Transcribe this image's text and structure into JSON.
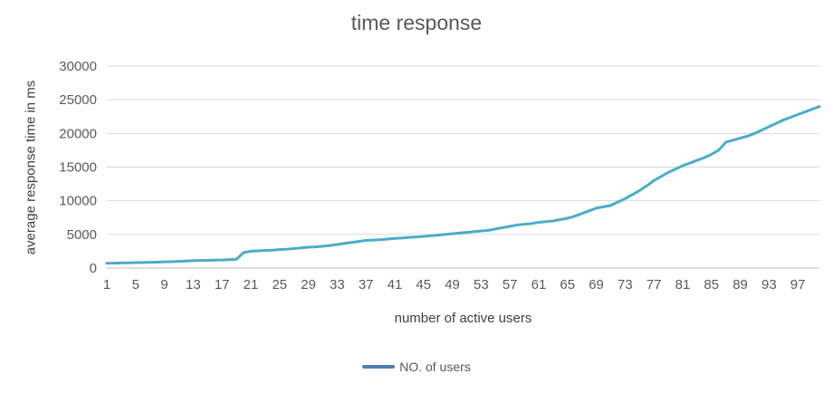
{
  "chart_data": {
    "type": "line",
    "title": "time response",
    "xlabel": "number of active users",
    "ylabel": "average response time in ms",
    "legend": [
      {
        "label": "NO. of users",
        "color": "#4f7db3"
      }
    ],
    "line_color": "#4bacc6",
    "grid_color": "#d9d9d9",
    "axis_color": "#bfbfbf",
    "tick_text_color": "#595959",
    "axis_title_color": "#404040",
    "title_color": "#595959",
    "grid": true,
    "legend_position": "bottom",
    "ylim": [
      0,
      30000
    ],
    "yticks": [
      0,
      5000,
      10000,
      15000,
      20000,
      25000,
      30000
    ],
    "xticks": [
      1,
      5,
      9,
      13,
      17,
      21,
      25,
      29,
      33,
      37,
      41,
      45,
      49,
      53,
      57,
      61,
      65,
      69,
      73,
      77,
      81,
      85,
      89,
      93,
      97
    ],
    "x": [
      1,
      2,
      3,
      4,
      5,
      6,
      7,
      8,
      9,
      10,
      11,
      12,
      13,
      14,
      15,
      16,
      17,
      18,
      19,
      20,
      21,
      22,
      23,
      24,
      25,
      26,
      27,
      28,
      29,
      30,
      31,
      32,
      33,
      34,
      35,
      36,
      37,
      38,
      39,
      40,
      41,
      42,
      43,
      44,
      45,
      46,
      47,
      48,
      49,
      50,
      51,
      52,
      53,
      54,
      55,
      56,
      57,
      58,
      59,
      60,
      61,
      62,
      63,
      64,
      65,
      66,
      67,
      68,
      69,
      70,
      71,
      72,
      73,
      74,
      75,
      76,
      77,
      78,
      79,
      80,
      81,
      82,
      83,
      84,
      85,
      86,
      87,
      88,
      89,
      90,
      91,
      92,
      93,
      94,
      95,
      96,
      97,
      98,
      99,
      100
    ],
    "values": [
      700,
      720,
      750,
      780,
      800,
      830,
      860,
      880,
      920,
      950,
      1000,
      1050,
      1100,
      1120,
      1150,
      1180,
      1200,
      1250,
      1300,
      2300,
      2500,
      2550,
      2600,
      2650,
      2750,
      2800,
      2900,
      3000,
      3100,
      3150,
      3250,
      3350,
      3500,
      3650,
      3800,
      3950,
      4100,
      4150,
      4200,
      4300,
      4400,
      4450,
      4550,
      4600,
      4700,
      4800,
      4900,
      5000,
      5100,
      5200,
      5300,
      5400,
      5500,
      5600,
      5800,
      6000,
      6200,
      6400,
      6500,
      6600,
      6800,
      6900,
      7000,
      7200,
      7400,
      7700,
      8100,
      8500,
      8900,
      9100,
      9300,
      9800,
      10300,
      10900,
      11500,
      12200,
      13000,
      13600,
      14200,
      14700,
      15200,
      15600,
      16000,
      16400,
      16900,
      17500,
      18700,
      19000,
      19300,
      19600,
      20000,
      20500,
      21000,
      21500,
      22000,
      22400,
      22800,
      23200,
      23600,
      24000
    ]
  }
}
